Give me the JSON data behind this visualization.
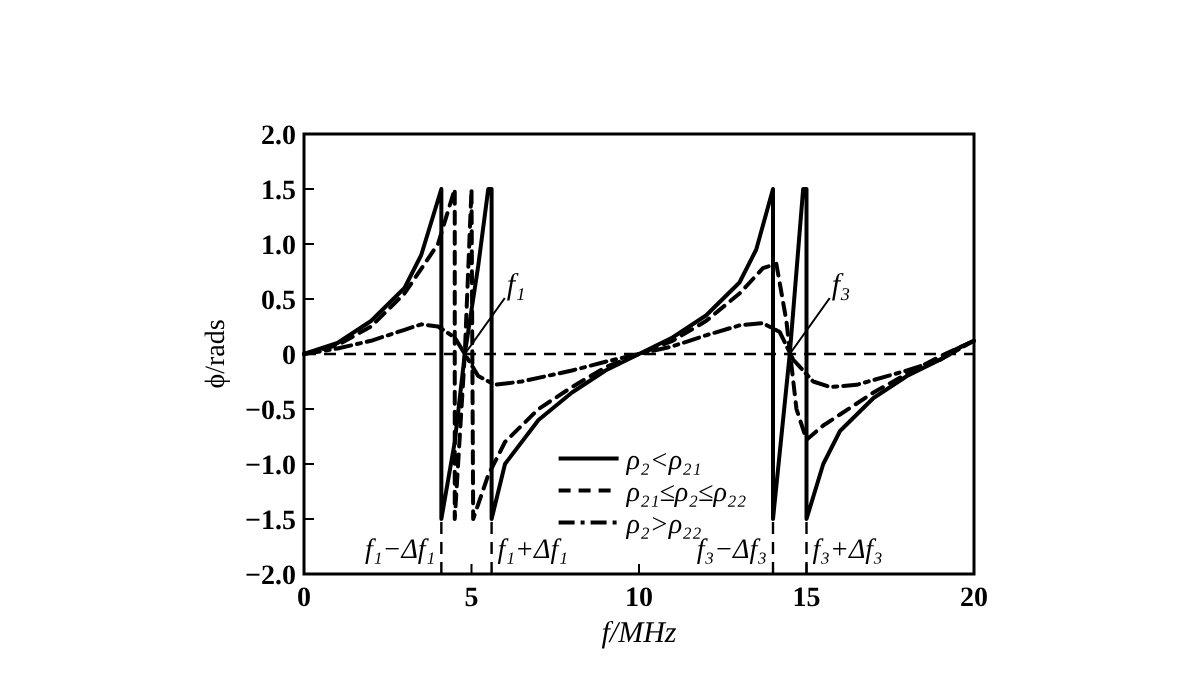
{
  "chart_data": {
    "type": "line",
    "xlabel": "f/MHz",
    "ylabel": "ϕ/rads",
    "xlim": [
      0,
      20
    ],
    "ylim": [
      -2,
      2
    ],
    "xticks": [
      0,
      5,
      10,
      15,
      20
    ],
    "yticks": [
      {
        "value": 2,
        "label": "2.0"
      },
      {
        "value": 1.5,
        "label": "1.5"
      },
      {
        "value": 1,
        "label": "1.0"
      },
      {
        "value": 0.5,
        "label": "0.5"
      },
      0,
      {
        "value": -0.5,
        "label": "−0.5"
      },
      {
        "value": -1,
        "label": "−1.0"
      },
      {
        "value": -1.5,
        "label": "−1.5"
      },
      {
        "value": -2,
        "label": "−2.0"
      }
    ],
    "legend": "bottom",
    "marker": "none",
    "series": [
      {
        "name": "ρ₂<ρ₂₁",
        "color": "#000000",
        "line_style": "solid",
        "x": [
          0,
          1,
          2,
          3,
          3.5,
          4.1,
          4.1,
          4.5,
          4.8,
          5.2,
          5.5,
          5.6,
          5.6,
          6,
          7,
          8,
          9,
          10,
          11,
          12,
          13,
          13.5,
          14,
          14,
          14.5,
          14.9,
          15,
          15,
          15.5,
          16,
          17,
          18,
          19,
          19.5,
          20
        ],
        "values": [
          0,
          0.1,
          0.3,
          0.6,
          0.9,
          1.5,
          -1.5,
          -0.8,
          0,
          0.8,
          1.5,
          1.5,
          -1.5,
          -1.0,
          -0.6,
          -0.35,
          -0.15,
          0,
          0.15,
          0.35,
          0.65,
          0.95,
          1.5,
          -1.5,
          0,
          1.5,
          1.5,
          -1.5,
          -1.0,
          -0.7,
          -0.4,
          -0.2,
          -0.05,
          0.05,
          0.12
        ]
      },
      {
        "name": "ρ₂₁≤ρ₂≤ρ₂₂",
        "color": "#000000",
        "line_style": "dashed",
        "x": [
          0,
          1,
          2,
          3,
          4,
          4.5,
          4.5,
          4.8,
          5.0,
          5.05,
          5.5,
          6,
          7,
          8,
          9,
          10,
          11,
          12,
          13,
          13.7,
          14.1,
          14.4,
          14.7,
          15.0,
          15.5,
          16,
          17,
          18,
          19,
          20
        ],
        "values": [
          0,
          0.08,
          0.25,
          0.55,
          1.0,
          1.5,
          -1.5,
          0,
          1.5,
          -1.5,
          -1.1,
          -0.8,
          -0.5,
          -0.3,
          -0.12,
          0,
          0.12,
          0.3,
          0.55,
          0.78,
          0.82,
          0.3,
          -0.5,
          -0.78,
          -0.65,
          -0.55,
          -0.35,
          -0.18,
          -0.02,
          0.12
        ]
      },
      {
        "name": "ρ₂>ρ₂₂",
        "color": "#000000",
        "line_style": "dotted",
        "x": [
          0,
          1,
          2,
          3,
          3.5,
          4,
          4.5,
          4.8,
          5.2,
          5.7,
          6.5,
          8,
          9,
          10,
          11,
          12,
          13,
          13.7,
          14.2,
          14.6,
          15.2,
          15.7,
          16.5,
          18,
          19,
          20
        ],
        "values": [
          0,
          0.05,
          0.12,
          0.22,
          0.27,
          0.25,
          0.15,
          0,
          -0.2,
          -0.28,
          -0.25,
          -0.15,
          -0.07,
          0,
          0.07,
          0.17,
          0.26,
          0.28,
          0.2,
          -0.05,
          -0.25,
          -0.3,
          -0.28,
          -0.15,
          -0.05,
          0.12
        ]
      }
    ],
    "ref_lines": [
      {
        "axis": "y",
        "value": 0,
        "line_style": "dashed"
      },
      {
        "axis": "x",
        "value": 4.1,
        "label": "f₁−Δf₁",
        "line_style": "dashed"
      },
      {
        "axis": "x",
        "value": 5.6,
        "label": "f₁+Δf₁",
        "line_style": "dashed"
      },
      {
        "axis": "x",
        "value": 14,
        "label": "f₃−Δf₃",
        "line_style": "dashed"
      },
      {
        "axis": "x",
        "value": 15,
        "label": "f₃+Δf₃",
        "line_style": "dashed"
      }
    ],
    "annotations": [
      {
        "text": "f₁",
        "x": 4.8,
        "y": 0
      },
      {
        "text": "f₃",
        "x": 14.5,
        "y": 0
      }
    ]
  }
}
